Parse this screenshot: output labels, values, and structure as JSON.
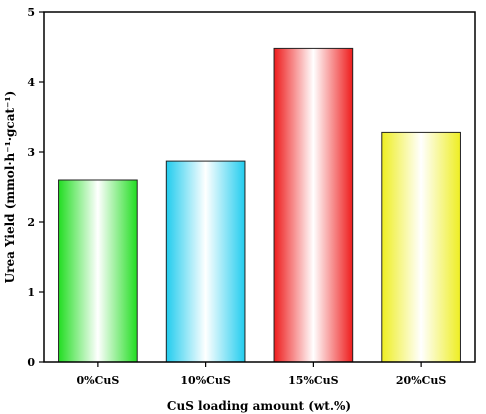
{
  "chart_data": {
    "type": "bar",
    "categories": [
      "0%CuS",
      "10%CuS",
      "15%CuS",
      "20%CuS"
    ],
    "values": [
      2.6,
      2.87,
      4.48,
      3.28
    ],
    "xlabel": "CuS loading amount (wt.%)",
    "ylabel": "Urea Yield (mmol·h⁻¹·gcat⁻¹)",
    "ylim": [
      0,
      5
    ],
    "yticks": [
      "0",
      "1",
      "2",
      "3",
      "4",
      "5"
    ],
    "colors": [
      "#22dd22",
      "#22ccee",
      "#ee1c1c",
      "#eeee22"
    ],
    "grid": false,
    "legend": "none"
  }
}
